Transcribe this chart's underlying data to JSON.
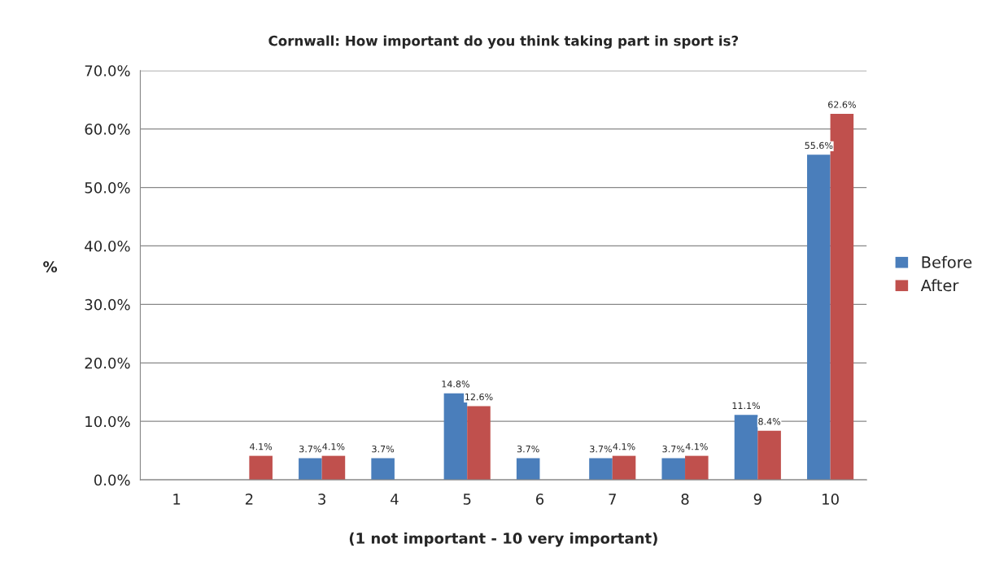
{
  "chart_data": {
    "type": "bar",
    "title": "Cornwall: How important do you think taking part in sport is?",
    "xlabel": "(1 not important - 10 very important)",
    "ylabel": "%",
    "categories": [
      "1",
      "2",
      "3",
      "4",
      "5",
      "6",
      "7",
      "8",
      "9",
      "10"
    ],
    "series": [
      {
        "name": "Before",
        "color": "#4a7ebb",
        "values": [
          null,
          null,
          3.7,
          3.7,
          14.8,
          3.7,
          3.7,
          3.7,
          11.1,
          55.6
        ],
        "value_labels": [
          null,
          null,
          "3.7%",
          "3.7%",
          "14.8%",
          "3.7%",
          "3.7%",
          "3.7%",
          "11.1%",
          "55.6%"
        ]
      },
      {
        "name": "After",
        "color": "#c0504d",
        "values": [
          null,
          4.1,
          4.1,
          null,
          12.6,
          null,
          4.1,
          4.1,
          8.4,
          62.6
        ],
        "value_labels": [
          null,
          "4.1%",
          "4.1%",
          null,
          "12.6%",
          null,
          "4.1%",
          "4.1%",
          "8.4%",
          "62.6%"
        ]
      }
    ],
    "ylim": [
      0,
      70
    ],
    "yticks": [
      {
        "value": 0,
        "label": "0.0%"
      },
      {
        "value": 10,
        "label": "10.0%"
      },
      {
        "value": 20,
        "label": "20.0%"
      },
      {
        "value": 30,
        "label": "30.0%"
      },
      {
        "value": 40,
        "label": "40.0%"
      },
      {
        "value": 50,
        "label": "50.0%"
      },
      {
        "value": 60,
        "label": "60.0%"
      },
      {
        "value": 70,
        "label": "70.0%"
      }
    ],
    "grid": "y",
    "legend": "right"
  }
}
